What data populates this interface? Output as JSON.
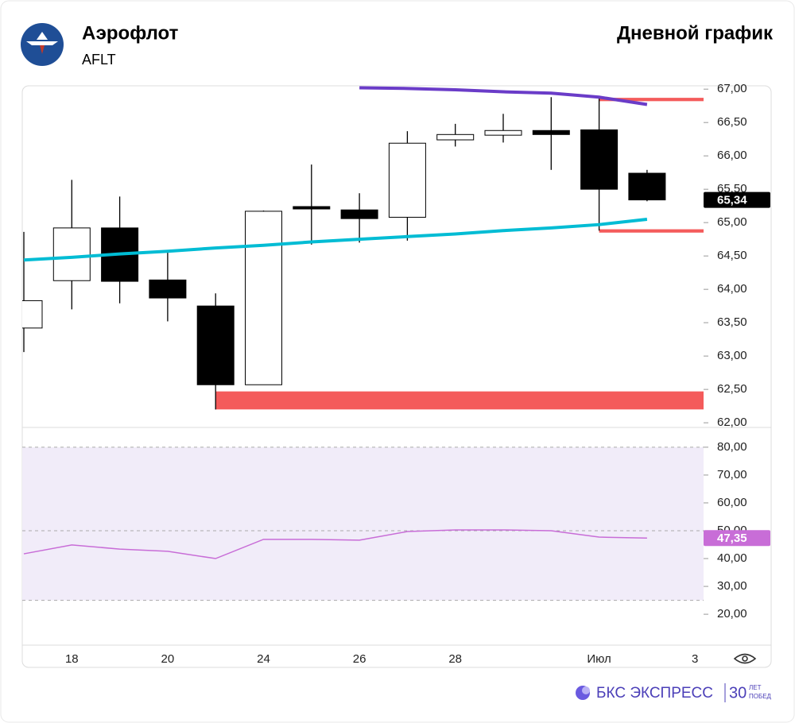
{
  "header": {
    "title": "Аэрофлот",
    "ticker": "AFLT",
    "chart_kind": "Дневной график"
  },
  "footer": {
    "brand": "БКС ЭКСПРЕСС",
    "badge_number": "30",
    "badge_top": "ЛЕТ",
    "badge_bottom": "ПОБЕД"
  },
  "chart_data": [
    {
      "type": "candlestick",
      "categories": [
        null,
        "18",
        null,
        "20",
        null,
        "24",
        null,
        "26",
        null,
        "28",
        null,
        null,
        "Июл",
        null,
        "3"
      ],
      "open": [
        63.42,
        64.13,
        64.92,
        64.14,
        63.75,
        62.57,
        65.24,
        65.19,
        65.08,
        66.24,
        66.31,
        66.38,
        66.39,
        65.74,
        null
      ],
      "high": [
        64.86,
        65.64,
        65.39,
        64.57,
        63.94,
        65.18,
        65.87,
        65.44,
        66.37,
        66.48,
        66.63,
        66.88,
        66.9,
        65.79,
        null
      ],
      "low": [
        63.06,
        63.7,
        63.79,
        63.52,
        62.2,
        62.57,
        64.67,
        64.7,
        64.73,
        66.14,
        66.2,
        65.79,
        64.88,
        65.32,
        null
      ],
      "close": [
        63.83,
        64.92,
        64.12,
        63.87,
        62.57,
        65.17,
        65.21,
        65.06,
        66.19,
        66.32,
        66.38,
        66.32,
        65.5,
        65.34,
        null
      ],
      "up_color": "#ffffff",
      "down_color": "#000000",
      "series": [
        {
          "color": "#00bcd4",
          "values": [
            64.44,
            64.48,
            64.53,
            64.57,
            64.62,
            64.66,
            64.71,
            64.75,
            64.79,
            64.83,
            64.88,
            64.92,
            64.97,
            65.05,
            null
          ]
        },
        {
          "color": "#6a3cc8",
          "values": [
            null,
            null,
            null,
            null,
            null,
            null,
            null,
            67.02,
            67.01,
            66.99,
            66.96,
            66.94,
            66.88,
            66.77,
            null
          ]
        }
      ],
      "zones": [
        {
          "start": 4,
          "low": 62.2,
          "high": 62.47,
          "color": "#f45b5b"
        },
        {
          "start": 12,
          "low": 66.82,
          "high": 66.87,
          "color": "#f45b5b"
        },
        {
          "start": 12,
          "low": 64.85,
          "high": 64.9,
          "color": "#f45b5b"
        }
      ],
      "last": {
        "value": 65.34,
        "label": "65,34"
      },
      "ylim": [
        61.93,
        67.05
      ],
      "yticks": [
        {
          "value": 62,
          "label": "62,00"
        },
        {
          "value": 62.5,
          "label": "62,50"
        },
        {
          "value": 63,
          "label": "63,00"
        },
        {
          "value": 63.5,
          "label": "63,50"
        },
        {
          "value": 64,
          "label": "64,00"
        },
        {
          "value": 64.5,
          "label": "64,50"
        },
        {
          "value": 65,
          "label": "65,00"
        },
        {
          "value": 65.5,
          "label": "65,50"
        },
        {
          "value": 66,
          "label": "66,00"
        },
        {
          "value": 66.5,
          "label": "66,50"
        },
        {
          "value": 67,
          "label": "67,00"
        }
      ]
    },
    {
      "type": "line",
      "values": [
        41.7,
        44.9,
        43.4,
        42.6,
        40.0,
        46.9,
        46.9,
        46.6,
        49.7,
        50.3,
        50.3,
        50.0,
        47.7,
        47.35,
        null
      ],
      "color": "#c86dd7",
      "band_color": "#f1ecf9",
      "bands": [
        80,
        50,
        25
      ],
      "last": {
        "value": 47.35,
        "label": "47,35"
      },
      "ylim": [
        8.9,
        87.1
      ],
      "yticks": [
        {
          "value": 20,
          "label": "20,00"
        },
        {
          "value": 30,
          "label": "30,00"
        },
        {
          "value": 40,
          "label": "40,00"
        },
        {
          "value": 50,
          "label": "50,00"
        },
        {
          "value": 60,
          "label": "60,00"
        },
        {
          "value": 70,
          "label": "70,00"
        },
        {
          "value": 80,
          "label": "80,00"
        }
      ]
    }
  ]
}
